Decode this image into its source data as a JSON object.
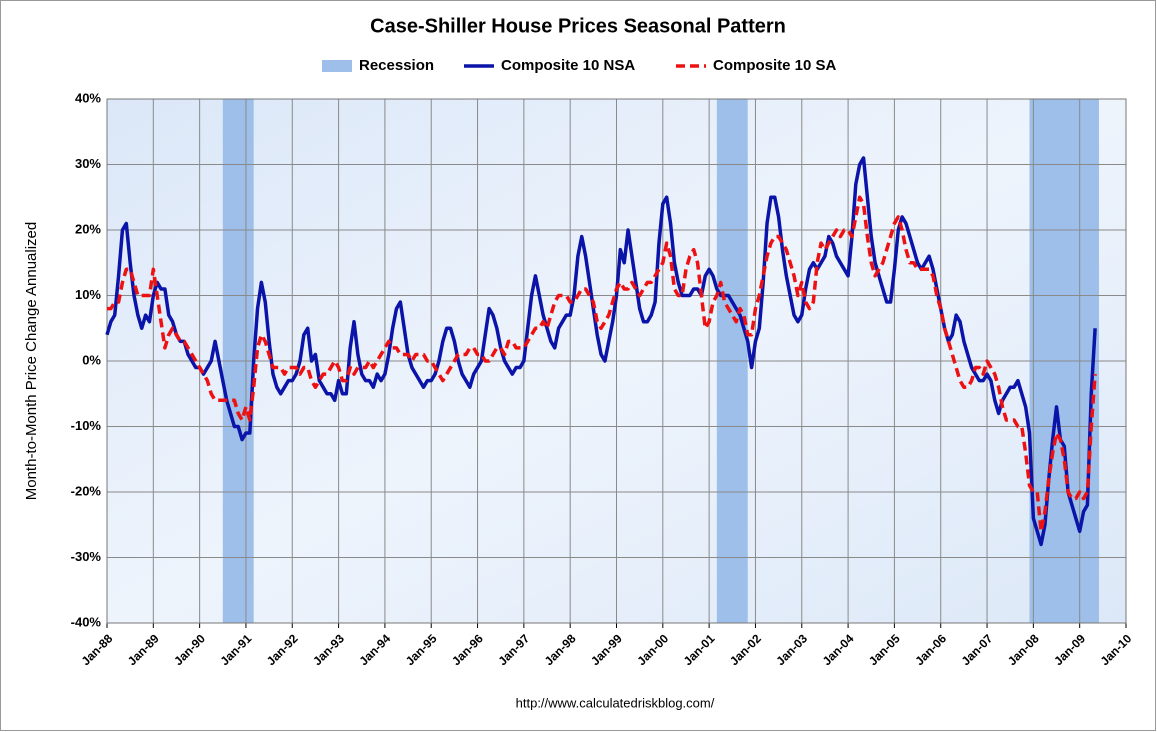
{
  "chart_data": {
    "type": "line",
    "title": "Case-Shiller House Prices Seasonal Pattern",
    "y_label": "Month-to-Month Price Change Annualized",
    "source": "http://www.calculatedriskblog.com/",
    "recession_label": "Recession",
    "recession_color": "#9dbfe9",
    "recessions": [
      {
        "start": "Jul-90",
        "end": "Mar-91"
      },
      {
        "start": "Mar-01",
        "end": "Nov-01"
      },
      {
        "start": "Dec-07",
        "end": "Jun-09"
      }
    ],
    "grid": true,
    "ylim": [
      -40,
      40
    ],
    "yticks": [
      {
        "value": -40,
        "label": "-40%"
      },
      {
        "value": -30,
        "label": "-30%"
      },
      {
        "value": -20,
        "label": "-20%"
      },
      {
        "value": -10,
        "label": "-10%"
      },
      {
        "value": 0,
        "label": "0%"
      },
      {
        "value": 10,
        "label": "10%"
      },
      {
        "value": 20,
        "label": "20%"
      },
      {
        "value": 30,
        "label": "30%"
      },
      {
        "value": 40,
        "label": "40%"
      }
    ],
    "xlim": [
      "Jan-88",
      "Jan-10"
    ],
    "xticks": [
      "Jan-88",
      "Jan-89",
      "Jan-90",
      "Jan-91",
      "Jan-92",
      "Jan-93",
      "Jan-94",
      "Jan-95",
      "Jan-96",
      "Jan-97",
      "Jan-98",
      "Jan-99",
      "Jan-00",
      "Jan-01",
      "Jan-02",
      "Jan-03",
      "Jan-04",
      "Jan-05",
      "Jan-06",
      "Jan-07",
      "Jan-08",
      "Jan-09",
      "Jan-10"
    ],
    "x": [
      "Jan-88",
      "Feb-88",
      "Mar-88",
      "Apr-88",
      "May-88",
      "Jun-88",
      "Jul-88",
      "Aug-88",
      "Sep-88",
      "Oct-88",
      "Nov-88",
      "Dec-88",
      "Jan-89",
      "Feb-89",
      "Mar-89",
      "Apr-89",
      "May-89",
      "Jun-89",
      "Jul-89",
      "Aug-89",
      "Sep-89",
      "Oct-89",
      "Nov-89",
      "Dec-89",
      "Jan-90",
      "Feb-90",
      "Mar-90",
      "Apr-90",
      "May-90",
      "Jun-90",
      "Jul-90",
      "Aug-90",
      "Sep-90",
      "Oct-90",
      "Nov-90",
      "Dec-90",
      "Jan-91",
      "Feb-91",
      "Mar-91",
      "Apr-91",
      "May-91",
      "Jun-91",
      "Jul-91",
      "Aug-91",
      "Sep-91",
      "Oct-91",
      "Nov-91",
      "Dec-91",
      "Jan-92",
      "Feb-92",
      "Mar-92",
      "Apr-92",
      "May-92",
      "Jun-92",
      "Jul-92",
      "Aug-92",
      "Sep-92",
      "Oct-92",
      "Nov-92",
      "Dec-92",
      "Jan-93",
      "Feb-93",
      "Mar-93",
      "Apr-93",
      "May-93",
      "Jun-93",
      "Jul-93",
      "Aug-93",
      "Sep-93",
      "Oct-93",
      "Nov-93",
      "Dec-93",
      "Jan-94",
      "Feb-94",
      "Mar-94",
      "Apr-94",
      "May-94",
      "Jun-94",
      "Jul-94",
      "Aug-94",
      "Sep-94",
      "Oct-94",
      "Nov-94",
      "Dec-94",
      "Jan-95",
      "Feb-95",
      "Mar-95",
      "Apr-95",
      "May-95",
      "Jun-95",
      "Jul-95",
      "Aug-95",
      "Sep-95",
      "Oct-95",
      "Nov-95",
      "Dec-95",
      "Jan-96",
      "Feb-96",
      "Mar-96",
      "Apr-96",
      "May-96",
      "Jun-96",
      "Jul-96",
      "Aug-96",
      "Sep-96",
      "Oct-96",
      "Nov-96",
      "Dec-96",
      "Jan-97",
      "Feb-97",
      "Mar-97",
      "Apr-97",
      "May-97",
      "Jun-97",
      "Jul-97",
      "Aug-97",
      "Sep-97",
      "Oct-97",
      "Nov-97",
      "Dec-97",
      "Jan-98",
      "Feb-98",
      "Mar-98",
      "Apr-98",
      "May-98",
      "Jun-98",
      "Jul-98",
      "Aug-98",
      "Sep-98",
      "Oct-98",
      "Nov-98",
      "Dec-98",
      "Jan-99",
      "Feb-99",
      "Mar-99",
      "Apr-99",
      "May-99",
      "Jun-99",
      "Jul-99",
      "Aug-99",
      "Sep-99",
      "Oct-99",
      "Nov-99",
      "Dec-99",
      "Jan-00",
      "Feb-00",
      "Mar-00",
      "Apr-00",
      "May-00",
      "Jun-00",
      "Jul-00",
      "Aug-00",
      "Sep-00",
      "Oct-00",
      "Nov-00",
      "Dec-00",
      "Jan-01",
      "Feb-01",
      "Mar-01",
      "Apr-01",
      "May-01",
      "Jun-01",
      "Jul-01",
      "Aug-01",
      "Sep-01",
      "Oct-01",
      "Nov-01",
      "Dec-01",
      "Jan-02",
      "Feb-02",
      "Mar-02",
      "Apr-02",
      "May-02",
      "Jun-02",
      "Jul-02",
      "Aug-02",
      "Sep-02",
      "Oct-02",
      "Nov-02",
      "Dec-02",
      "Jan-03",
      "Feb-03",
      "Mar-03",
      "Apr-03",
      "May-03",
      "Jun-03",
      "Jul-03",
      "Aug-03",
      "Sep-03",
      "Oct-03",
      "Nov-03",
      "Dec-03",
      "Jan-04",
      "Feb-04",
      "Mar-04",
      "Apr-04",
      "May-04",
      "Jun-04",
      "Jul-04",
      "Aug-04",
      "Sep-04",
      "Oct-04",
      "Nov-04",
      "Dec-04",
      "Jan-05",
      "Feb-05",
      "Mar-05",
      "Apr-05",
      "May-05",
      "Jun-05",
      "Jul-05",
      "Aug-05",
      "Sep-05",
      "Oct-05",
      "Nov-05",
      "Dec-05",
      "Jan-06",
      "Feb-06",
      "Mar-06",
      "Apr-06",
      "May-06",
      "Jun-06",
      "Jul-06",
      "Aug-06",
      "Sep-06",
      "Oct-06",
      "Nov-06",
      "Dec-06",
      "Jan-07",
      "Feb-07",
      "Mar-07",
      "Apr-07",
      "May-07",
      "Jun-07",
      "Jul-07",
      "Aug-07",
      "Sep-07",
      "Oct-07",
      "Nov-07",
      "Dec-07",
      "Jan-08",
      "Feb-08",
      "Mar-08",
      "Apr-08",
      "May-08",
      "Jun-08",
      "Jul-08",
      "Aug-08",
      "Sep-08",
      "Oct-08",
      "Nov-08",
      "Dec-08",
      "Jan-09",
      "Feb-09",
      "Mar-09",
      "Apr-09",
      "May-09"
    ],
    "series": [
      {
        "name": "Composite 10 NSA",
        "color": "#0a14a8",
        "dash": false,
        "values": [
          4,
          6,
          7,
          13,
          20,
          21,
          15,
          10,
          7,
          5,
          7,
          6,
          10,
          12,
          11,
          11,
          7,
          6,
          4,
          3,
          3,
          1,
          0,
          -1,
          -1,
          -2,
          -1,
          0,
          3,
          0,
          -3,
          -6,
          -8,
          -10,
          -10,
          -12,
          -11,
          -11,
          0,
          8,
          12,
          9,
          3,
          -2,
          -4,
          -5,
          -4,
          -3,
          -3,
          -2,
          0,
          4,
          5,
          0,
          1,
          -3,
          -4,
          -5,
          -5,
          -6,
          -3,
          -5,
          -5,
          2,
          6,
          1,
          -2,
          -3,
          -3,
          -4,
          -2,
          -3,
          -2,
          1,
          5,
          8,
          9,
          5,
          1,
          -1,
          -2,
          -3,
          -4,
          -3,
          -3,
          -2,
          0,
          3,
          5,
          5,
          3,
          0,
          -2,
          -3,
          -4,
          -2,
          -1,
          0,
          4,
          8,
          7,
          5,
          2,
          0,
          -1,
          -2,
          -1,
          -1,
          0,
          5,
          10,
          13,
          10,
          7,
          5,
          3,
          2,
          5,
          6,
          7,
          7,
          10,
          16,
          19,
          16,
          12,
          8,
          4,
          1,
          0,
          3,
          6,
          10,
          17,
          15,
          20,
          16,
          12,
          8,
          6,
          6,
          7,
          9,
          18,
          24,
          25,
          21,
          15,
          12,
          10,
          10,
          10,
          11,
          11,
          10,
          13,
          14,
          13,
          11,
          10,
          10,
          10,
          9,
          8,
          7,
          5,
          3,
          -1,
          3,
          5,
          12,
          21,
          25,
          25,
          22,
          17,
          13,
          10,
          7,
          6,
          7,
          11,
          14,
          15,
          14,
          15,
          16,
          19,
          18,
          16,
          15,
          14,
          13,
          19,
          27,
          30,
          31,
          25,
          19,
          15,
          13,
          11,
          9,
          9,
          14,
          20,
          22,
          21,
          19,
          17,
          15,
          14,
          15,
          16,
          14,
          11,
          8,
          5,
          3,
          4,
          7,
          6,
          3,
          1,
          -1,
          -2,
          -3,
          -3,
          -2,
          -3,
          -6,
          -8,
          -6,
          -5,
          -4,
          -4,
          -3,
          -5,
          -7,
          -11,
          -24,
          -26,
          -28,
          -25,
          -18,
          -12,
          -7,
          -12,
          -13,
          -20,
          -22,
          -24,
          -26,
          -23,
          -22,
          -5,
          5
        ]
      },
      {
        "name": "Composite 10 SA",
        "color": "#ee1111",
        "dash": true,
        "values": [
          8,
          8,
          9,
          9,
          12,
          14,
          14,
          12,
          10,
          10,
          10,
          10,
          14,
          10,
          6,
          2,
          4,
          5,
          4,
          3,
          3,
          2,
          1,
          0,
          -1,
          -2,
          -3,
          -5,
          -6,
          -6,
          -6,
          -6,
          -6,
          -6,
          -8,
          -9,
          -7,
          -9,
          -4,
          2,
          4,
          3,
          1,
          -1,
          -1,
          -1,
          -2,
          -1,
          -1,
          -1,
          -2,
          -1,
          -1,
          -3,
          -4,
          -3,
          -2,
          -2,
          -1,
          0,
          -1,
          -3,
          -3,
          -1,
          -2,
          -1,
          -1,
          -1,
          0,
          -1,
          0,
          1,
          2,
          3,
          2,
          2,
          1,
          1,
          1,
          0,
          1,
          1,
          1,
          0,
          0,
          -1,
          -2,
          -3,
          -2,
          -1,
          0,
          1,
          1,
          1,
          2,
          2,
          1,
          1,
          0,
          0,
          1,
          2,
          2,
          1,
          3,
          3,
          2,
          2,
          2,
          3,
          4,
          5,
          5,
          6,
          5,
          7,
          9,
          10,
          10,
          10,
          9,
          9,
          10,
          11,
          11,
          10,
          9,
          6,
          5,
          6,
          7,
          9,
          11,
          12,
          11,
          11,
          12,
          11,
          10,
          11,
          12,
          12,
          13,
          14,
          15,
          18,
          16,
          11,
          10,
          10,
          14,
          16,
          17,
          15,
          10,
          5,
          6,
          9,
          10,
          12,
          9,
          8,
          7,
          6,
          8,
          7,
          4,
          4,
          8,
          10,
          13,
          16,
          18,
          19,
          19,
          18,
          17,
          15,
          13,
          10,
          12,
          9,
          8,
          9,
          15,
          18,
          17,
          18,
          19,
          20,
          19,
          20,
          20,
          19,
          22,
          25,
          24,
          19,
          15,
          13,
          14,
          15,
          17,
          19,
          21,
          22,
          20,
          17,
          15,
          15,
          14,
          14,
          14,
          14,
          13,
          10,
          8,
          5,
          3,
          1,
          -1,
          -3,
          -4,
          -4,
          -3,
          -1,
          -1,
          -2,
          0,
          -1,
          -2,
          -4,
          -7,
          -9,
          -9,
          -9,
          -10,
          -10,
          -14,
          -19,
          -20,
          -20,
          -26,
          -23,
          -18,
          -14,
          -11,
          -12,
          -15,
          -20,
          -21,
          -21,
          -20,
          -21,
          -20,
          -10,
          -2
        ]
      }
    ]
  }
}
